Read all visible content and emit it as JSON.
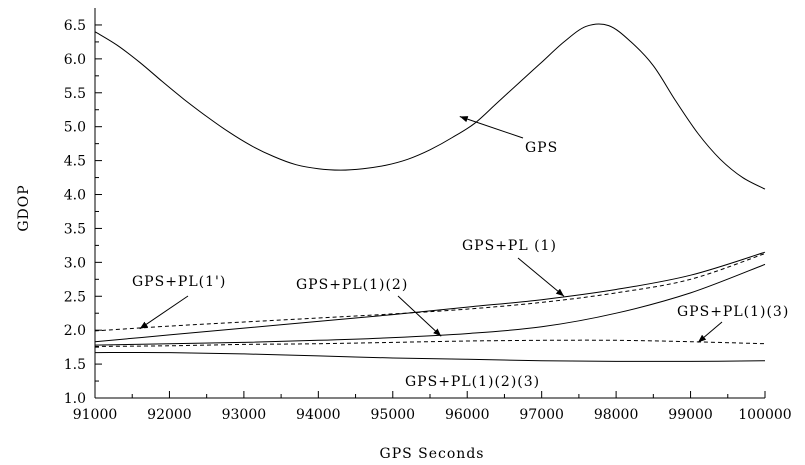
{
  "chart_data": {
    "type": "line",
    "xlabel": "GPS Seconds",
    "ylabel": "GDOP",
    "xlim": [
      91000,
      100000
    ],
    "ylim": [
      1.0,
      6.75
    ],
    "xticks": [
      91000,
      92000,
      93000,
      94000,
      95000,
      96000,
      97000,
      98000,
      99000,
      100000
    ],
    "yticks": [
      1.0,
      1.5,
      2.0,
      2.5,
      3.0,
      3.5,
      4.0,
      4.5,
      5.0,
      5.5,
      6.0,
      6.5
    ],
    "grid": false,
    "legend": "none",
    "series": [
      {
        "label_ref": "GPS",
        "style": "solid",
        "x": [
          91000,
          91300,
          91600,
          91900,
          92200,
          92500,
          92800,
          93100,
          93400,
          93700,
          94000,
          94300,
          94600,
          94900,
          95200,
          95500,
          95800,
          96100,
          96400,
          96700,
          97000,
          97300,
          97600,
          97900,
          98200,
          98500,
          98800,
          99100,
          99400,
          99700,
          100000
        ],
        "y": [
          6.4,
          6.2,
          5.95,
          5.67,
          5.4,
          5.15,
          4.92,
          4.72,
          4.56,
          4.44,
          4.38,
          4.36,
          4.38,
          4.43,
          4.52,
          4.66,
          4.84,
          5.05,
          5.35,
          5.65,
          5.95,
          6.25,
          6.48,
          6.49,
          6.25,
          5.9,
          5.38,
          4.9,
          4.52,
          4.25,
          4.08
        ]
      },
      {
        "label_ref": "GPS+PL(1')",
        "style": "dashed",
        "x": [
          91000,
          92000,
          93000,
          94000,
          95000,
          96000,
          97000,
          98000,
          99000,
          100000
        ],
        "y": [
          1.99,
          2.06,
          2.12,
          2.18,
          2.24,
          2.31,
          2.41,
          2.55,
          2.75,
          3.13
        ]
      },
      {
        "label_ref": "GPS+PL (1)",
        "style": "solid",
        "x": [
          91000,
          92000,
          93000,
          94000,
          95000,
          96000,
          97000,
          98000,
          99000,
          100000
        ],
        "y": [
          1.83,
          1.93,
          2.03,
          2.13,
          2.23,
          2.34,
          2.45,
          2.6,
          2.81,
          3.15
        ]
      },
      {
        "label_ref": "GPS+PL(1)(2)",
        "style": "solid",
        "x": [
          91000,
          92000,
          93000,
          94000,
          95000,
          96000,
          97000,
          98000,
          99000,
          100000
        ],
        "y": [
          1.78,
          1.8,
          1.82,
          1.85,
          1.89,
          1.95,
          2.05,
          2.25,
          2.55,
          2.97
        ]
      },
      {
        "label_ref": "GPS+PL(1)(3)",
        "style": "dashed",
        "x": [
          91000,
          92000,
          93000,
          94000,
          95000,
          96000,
          97000,
          98000,
          99000,
          100000
        ],
        "y": [
          1.76,
          1.77,
          1.79,
          1.8,
          1.82,
          1.84,
          1.85,
          1.85,
          1.83,
          1.8
        ]
      },
      {
        "label_ref": "GPS+PL(1)(2)(3)",
        "style": "solid",
        "x": [
          91000,
          92000,
          93000,
          94000,
          95000,
          96000,
          97000,
          98000,
          99000,
          100000
        ],
        "y": [
          1.67,
          1.67,
          1.65,
          1.62,
          1.59,
          1.57,
          1.55,
          1.54,
          1.54,
          1.55
        ]
      }
    ],
    "annotations": [
      {
        "text": "GPS",
        "arrow_to": [
          95900,
          5.15
        ]
      },
      {
        "text": "GPS+PL (1)",
        "arrow_to": [
          97300,
          2.5
        ]
      },
      {
        "text": "GPS+PL(1')",
        "arrow_to": [
          91600,
          2.02
        ]
      },
      {
        "text": "GPS+PL(1)(2)",
        "arrow_to": [
          95650,
          1.91
        ]
      },
      {
        "text": "GPS+PL(1)(3)",
        "arrow_to": [
          99100,
          1.82
        ]
      },
      {
        "text": "GPS+PL(1)(2)(3)",
        "arrow_to": null
      }
    ]
  }
}
